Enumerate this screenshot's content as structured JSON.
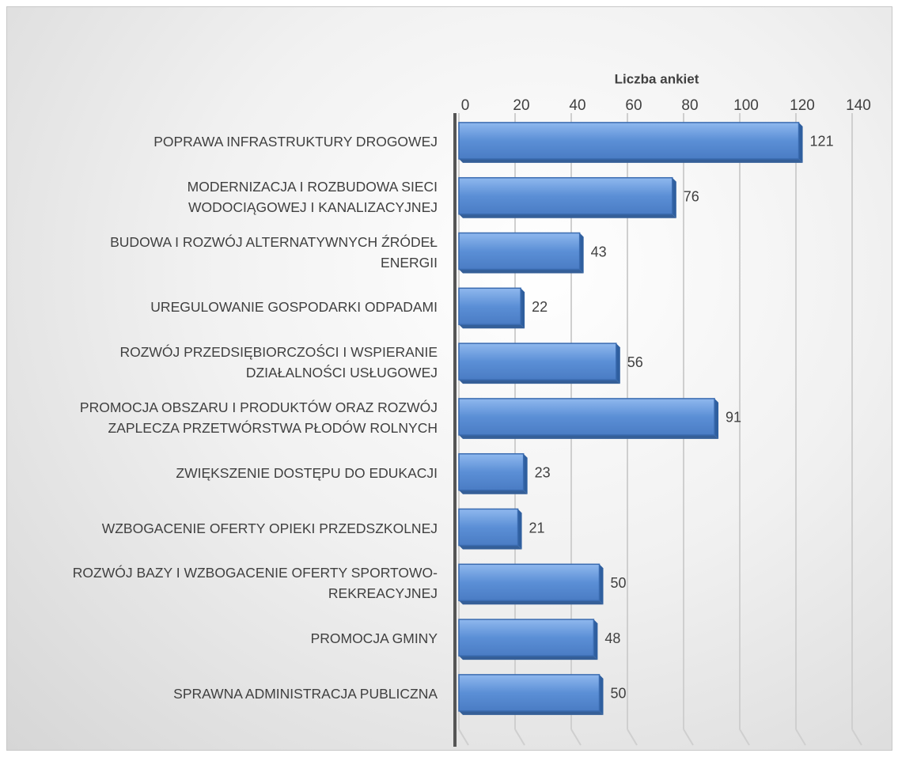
{
  "chart_data": {
    "type": "bar",
    "orientation": "horizontal",
    "x_axis_title": "Liczba ankiet",
    "categories": [
      "POPRAWA INFRASTRUKTURY DROGOWEJ",
      "MODERNIZACJA I ROZBUDOWA SIECI\nWODOCIĄGOWEJ I KANALIZACYJNEJ",
      "BUDOWA I ROZWÓJ ALTERNATYWNYCH ŹRÓDEŁ\nENERGII",
      "UREGULOWANIE GOSPODARKI ODPADAMI",
      "ROZWÓJ PRZEDSIĘBIORCZOŚCI I WSPIERANIE\nDZIAŁALNOŚCI USŁUGOWEJ",
      "PROMOCJA OBSZARU I PRODUKTÓW ORAZ ROZWÓJ\nZAPLECZA PRZETWÓRSTWA PŁODÓW ROLNYCH",
      "ZWIĘKSZENIE DOSTĘPU DO EDUKACJI",
      "WZBOGACENIE OFERTY OPIEKI PRZEDSZKOLNEJ",
      "ROZWÓJ BAZY I WZBOGACENIE OFERTY SPORTOWO-\nREKREACYJNEJ",
      "PROMOCJA GMINY",
      "SPRAWNA ADMINISTRACJA PUBLICZNA"
    ],
    "values": [
      121,
      76,
      43,
      22,
      56,
      91,
      23,
      21,
      50,
      48,
      50
    ],
    "color": "#5b8fd6",
    "xlim": [
      0,
      140
    ],
    "xticks": [
      0,
      20,
      40,
      60,
      80,
      100,
      120,
      140
    ],
    "grid": true
  }
}
